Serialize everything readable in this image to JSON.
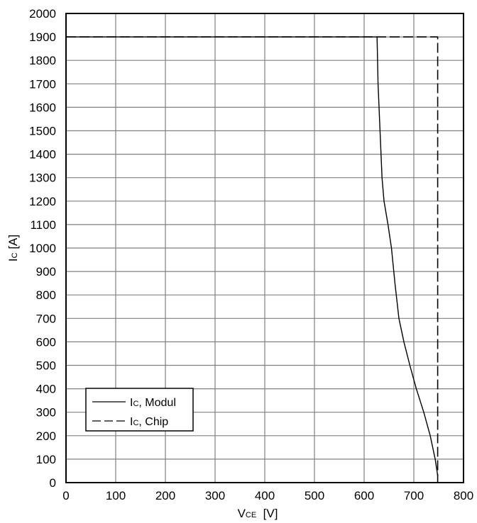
{
  "chart_data": {
    "type": "line",
    "xlabel": {
      "main": "V",
      "sub": "CE",
      "unit": "  [V]"
    },
    "ylabel": {
      "main": "I",
      "sub": "C",
      "unit": " [A]"
    },
    "xlim": [
      0,
      800
    ],
    "ylim": [
      0,
      2000
    ],
    "xticks": [
      0,
      100,
      200,
      300,
      400,
      500,
      600,
      700,
      800
    ],
    "yticks": [
      0,
      100,
      200,
      300,
      400,
      500,
      600,
      700,
      800,
      900,
      1000,
      1100,
      1200,
      1300,
      1400,
      1500,
      1600,
      1700,
      1800,
      1900,
      2000
    ],
    "grid": true,
    "legend_position": "bottom-left",
    "series": [
      {
        "name": {
          "main": "I",
          "sub": "C",
          "rest": ", Modul"
        },
        "style": "solid",
        "x": [
          0,
          626,
          628,
          632,
          636,
          640,
          648,
          655,
          662,
          670,
          680,
          692,
          705,
          720,
          733,
          743,
          748
        ],
        "y": [
          1900,
          1900,
          1700,
          1500,
          1300,
          1200,
          1100,
          1000,
          850,
          700,
          600,
          500,
          400,
          300,
          200,
          100,
          30
        ]
      },
      {
        "name": {
          "main": "I",
          "sub": "C",
          "rest": ", Chip"
        },
        "style": "dashed",
        "x": [
          0,
          748,
          748
        ],
        "y": [
          1900,
          1900,
          0
        ]
      }
    ]
  }
}
